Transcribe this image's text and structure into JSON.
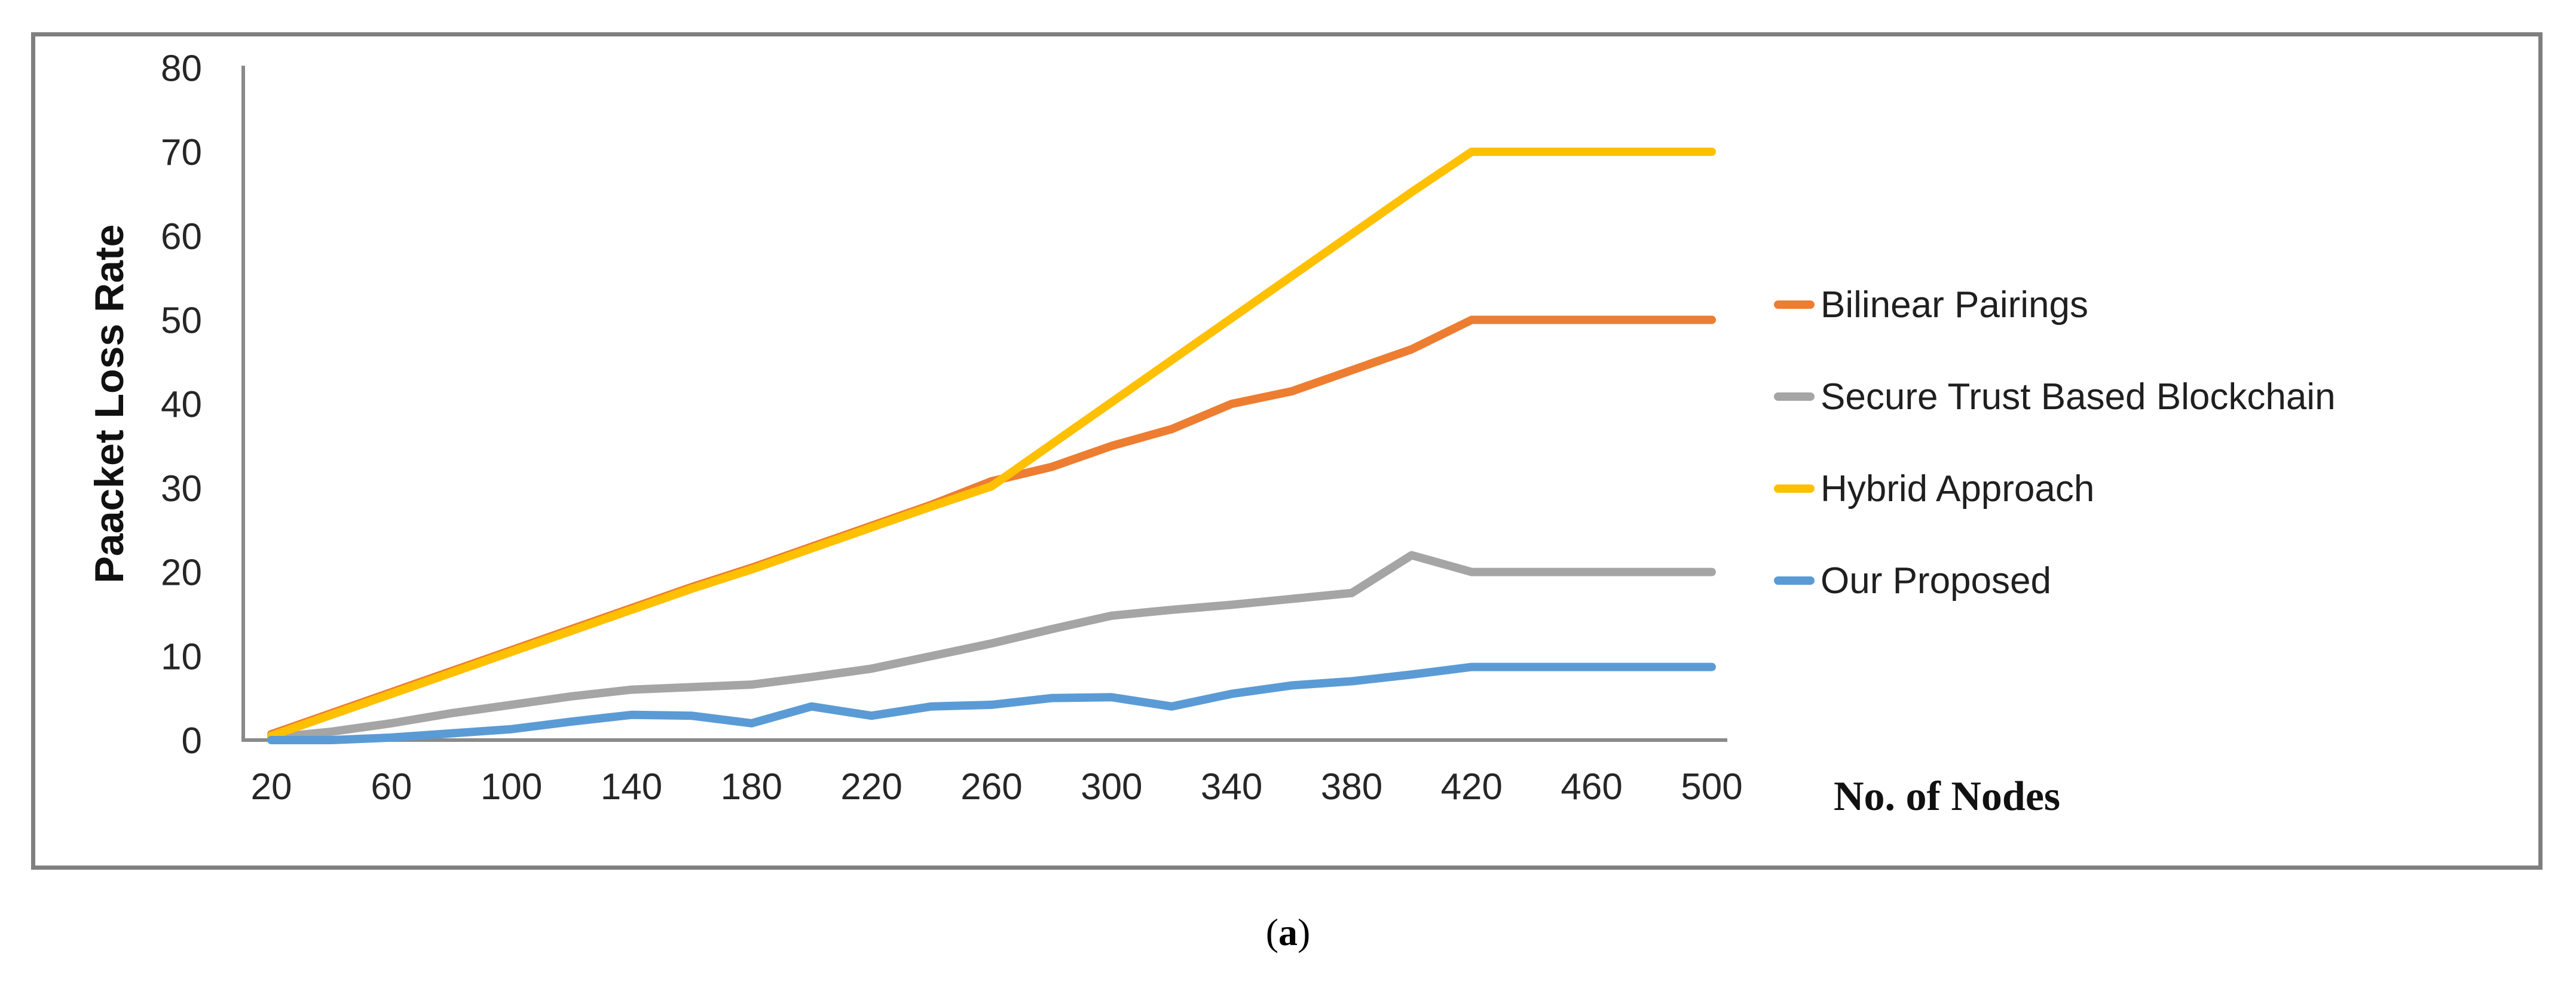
{
  "figure": {
    "background": "#ffffff",
    "border_color": "#7f7f7f",
    "caption": {
      "open": "(",
      "letter": "a",
      "close": ")"
    }
  },
  "chart_data": {
    "type": "line",
    "title": "",
    "xlabel": "No. of Nodes",
    "ylabel": "Paacket Loss Rate",
    "x": [
      20,
      40,
      60,
      80,
      100,
      120,
      140,
      160,
      180,
      200,
      220,
      240,
      260,
      280,
      300,
      320,
      340,
      360,
      380,
      400,
      420,
      440,
      460,
      480,
      500
    ],
    "x_tick_labels": [
      "20",
      "60",
      "100",
      "140",
      "180",
      "220",
      "260",
      "300",
      "340",
      "380",
      "420",
      "460",
      "500"
    ],
    "y_ticks": [
      "0",
      "10",
      "20",
      "30",
      "40",
      "50",
      "60",
      "70",
      "80"
    ],
    "ylim": [
      0,
      80
    ],
    "grid": false,
    "legend_position": "right",
    "axis_color": "#8a8a8a",
    "series": [
      {
        "name": "Bilinear Pairings",
        "color": "#ED7D31",
        "values": [
          0.7,
          3.2,
          5.7,
          8.2,
          10.7,
          13.2,
          15.7,
          18.2,
          20.5,
          23,
          25.5,
          28,
          30.8,
          32.5,
          35,
          37,
          40,
          41.5,
          44,
          46.5,
          50,
          50,
          50,
          50,
          50
        ]
      },
      {
        "name": "Secure Trust Based Blockchain",
        "color": "#A5A5A5",
        "values": [
          0.3,
          1,
          2,
          3.2,
          4.2,
          5.2,
          6,
          6.3,
          6.6,
          7.5,
          8.5,
          10,
          11.5,
          13.2,
          14.8,
          15.5,
          16.1,
          16.8,
          17.5,
          22,
          20,
          20,
          20,
          20,
          20
        ]
      },
      {
        "name": "Hybrid Approach",
        "color": "#FFC000",
        "values": [
          0.5,
          3,
          5.5,
          8,
          10.5,
          13,
          15.5,
          18,
          20.3,
          22.8,
          25.3,
          27.8,
          30.2,
          35.2,
          40.2,
          45.2,
          50.2,
          55.2,
          60.2,
          65.2,
          70,
          70,
          70,
          70,
          70
        ]
      },
      {
        "name": "Our Proposed",
        "color": "#5B9BD5",
        "values": [
          0,
          0,
          0.3,
          0.8,
          1.3,
          2.2,
          3,
          2.9,
          2,
          4,
          2.9,
          4,
          4.2,
          5,
          5.1,
          4,
          5.5,
          6.5,
          7,
          7.8,
          8.7,
          8.7,
          8.7,
          8.7,
          8.7
        ]
      }
    ]
  }
}
